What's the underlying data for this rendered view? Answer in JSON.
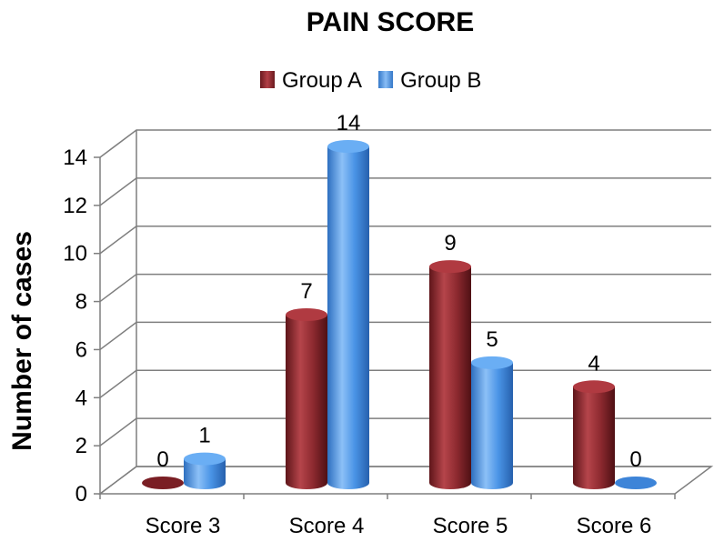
{
  "chart_data": {
    "type": "bar",
    "title": "PAIN SCORE",
    "xlabel": "",
    "ylabel": "Number of cases",
    "categories": [
      "Score 3",
      "Score 4",
      "Score 5",
      "Score 6"
    ],
    "series": [
      {
        "name": "Group A",
        "values": [
          0,
          7,
          9,
          4
        ]
      },
      {
        "name": "Group B",
        "values": [
          1,
          14,
          5,
          0
        ]
      }
    ],
    "ylim": [
      0,
      14
    ],
    "yticks": [
      0,
      2,
      4,
      6,
      8,
      10,
      12,
      14
    ],
    "grid": true,
    "legend": "top",
    "colors": {
      "Group A": "#8e2a30",
      "Group B": "#4a94e6"
    },
    "style": "3d-cylinder"
  }
}
